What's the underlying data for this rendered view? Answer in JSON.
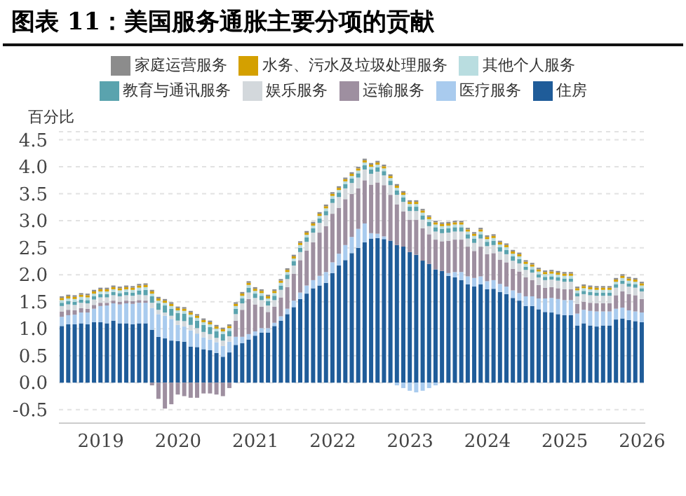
{
  "chart_data": {
    "type": "bar",
    "title": "图表 11：美国服务通胀主要分项的贡献",
    "ylabel": "百分比",
    "stacked": true,
    "legend": "top",
    "grid": "y",
    "categories": [
      null,
      null,
      null,
      null,
      null,
      null,
      "2019",
      null,
      null,
      null,
      null,
      null,
      null,
      null,
      null,
      null,
      null,
      null,
      "2020",
      null,
      null,
      null,
      null,
      null,
      null,
      null,
      null,
      null,
      null,
      null,
      "2021",
      null,
      null,
      null,
      null,
      null,
      null,
      null,
      null,
      null,
      null,
      null,
      "2022",
      null,
      null,
      null,
      null,
      null,
      null,
      null,
      null,
      null,
      null,
      null,
      "2023",
      null,
      null,
      null,
      null,
      null,
      null,
      null,
      null,
      null,
      null,
      null,
      "2024",
      null,
      null,
      null,
      null,
      null,
      null,
      null,
      null,
      null,
      null,
      null,
      "2025",
      null,
      null,
      null,
      null,
      null,
      null,
      null,
      null,
      null,
      null,
      null,
      "2026"
    ],
    "ylim": [
      -0.75,
      4.65
    ],
    "yticks": [
      -0.5,
      {
        "value": 0,
        "label": "0.0"
      },
      0.5,
      {
        "value": 1,
        "label": "1.0"
      },
      1.5,
      {
        "value": 2,
        "label": "2.0"
      },
      2.5,
      {
        "value": 3,
        "label": "3.0"
      },
      3.5,
      {
        "value": 4,
        "label": "4.0"
      },
      4.5
    ],
    "series": [
      {
        "name": "住房",
        "color": "#1f5c99",
        "values": [
          1.05,
          1.08,
          1.08,
          1.1,
          1.08,
          1.12,
          1.12,
          1.1,
          1.15,
          1.1,
          1.1,
          1.08,
          1.1,
          1.1,
          0.98,
          0.85,
          0.82,
          0.78,
          0.77,
          0.76,
          0.67,
          0.66,
          0.62,
          0.6,
          0.55,
          0.48,
          0.56,
          0.7,
          0.73,
          0.8,
          0.87,
          0.93,
          0.93,
          1.05,
          1.15,
          1.27,
          1.4,
          1.55,
          1.65,
          1.75,
          1.8,
          1.85,
          2.03,
          2.17,
          2.27,
          2.4,
          2.5,
          2.6,
          2.67,
          2.68,
          2.66,
          2.63,
          2.55,
          2.52,
          2.42,
          2.37,
          2.26,
          2.2,
          2.1,
          2.07,
          1.98,
          1.95,
          1.9,
          1.82,
          1.78,
          1.82,
          1.73,
          1.74,
          1.68,
          1.64,
          1.57,
          1.52,
          1.42,
          1.42,
          1.36,
          1.31,
          1.3,
          1.27,
          1.25,
          1.25,
          1.06,
          1.1,
          1.06,
          1.04,
          1.06,
          1.06,
          1.17,
          1.19,
          1.16,
          1.14,
          1.12
        ]
      },
      {
        "name": "医疗服务",
        "color": "#a9cbee",
        "values": [
          0.17,
          0.17,
          0.18,
          0.2,
          0.22,
          0.25,
          0.3,
          0.33,
          0.32,
          0.35,
          0.37,
          0.38,
          0.38,
          0.38,
          0.4,
          0.42,
          0.42,
          0.4,
          0.3,
          0.28,
          0.3,
          0.25,
          0.22,
          0.2,
          0.2,
          0.2,
          0.2,
          0.15,
          0.12,
          0.1,
          0.08,
          0.08,
          0.08,
          0.06,
          0.08,
          0.1,
          0.12,
          0.12,
          0.15,
          0.15,
          0.18,
          0.2,
          0.2,
          0.22,
          0.28,
          0.3,
          0.35,
          0.35,
          0.1,
          0.08,
          0.05,
          null,
          -0.05,
          -0.1,
          -0.15,
          -0.18,
          -0.15,
          -0.1,
          -0.05,
          null,
          0.05,
          0.1,
          0.15,
          0.15,
          0.16,
          0.15,
          0.15,
          0.16,
          0.15,
          0.14,
          0.14,
          0.14,
          0.18,
          0.18,
          0.2,
          0.25,
          0.27,
          0.28,
          0.28,
          0.28,
          0.22,
          0.25,
          0.27,
          0.28,
          0.26,
          0.26,
          0.2,
          0.2,
          0.18,
          0.18,
          0.18
        ]
      },
      {
        "name": "运输服务",
        "color": "#9e8fa0",
        "values": [
          0.1,
          0.1,
          0.08,
          0.08,
          0.07,
          0.07,
          0.06,
          0.05,
          0.05,
          0.05,
          0.05,
          0.05,
          0.05,
          0.04,
          -0.05,
          -0.3,
          -0.48,
          -0.4,
          -0.22,
          -0.25,
          -0.28,
          -0.28,
          -0.2,
          -0.2,
          -0.22,
          -0.25,
          -0.1,
          0.3,
          0.5,
          0.65,
          0.5,
          0.4,
          0.3,
          0.3,
          0.35,
          0.4,
          0.5,
          0.6,
          0.65,
          0.7,
          0.8,
          0.85,
          0.9,
          0.85,
          0.85,
          0.8,
          0.75,
          0.8,
          0.9,
          0.95,
          0.95,
          0.85,
          0.75,
          0.65,
          0.6,
          0.65,
          0.6,
          0.55,
          0.55,
          0.55,
          0.6,
          0.6,
          0.6,
          0.55,
          0.5,
          0.55,
          0.5,
          0.5,
          0.45,
          0.45,
          0.4,
          0.4,
          0.35,
          0.3,
          0.25,
          0.2,
          0.2,
          0.2,
          0.2,
          0.2,
          0.18,
          0.15,
          0.15,
          0.15,
          0.15,
          0.15,
          0.25,
          0.3,
          0.3,
          0.3,
          0.25
        ]
      },
      {
        "name": "娱乐服务",
        "color": "#d3d8dc",
        "values": [
          0.1,
          0.1,
          0.1,
          0.1,
          0.1,
          0.1,
          0.1,
          0.1,
          0.1,
          0.1,
          0.1,
          0.1,
          0.1,
          0.1,
          0.1,
          0.08,
          0.06,
          0.06,
          0.08,
          0.1,
          0.1,
          0.1,
          0.1,
          0.1,
          0.08,
          0.1,
          0.1,
          0.12,
          0.12,
          0.12,
          0.12,
          0.12,
          0.12,
          0.12,
          0.14,
          0.15,
          0.15,
          0.15,
          0.16,
          0.18,
          0.18,
          0.2,
          0.2,
          0.2,
          0.2,
          0.2,
          0.2,
          0.2,
          0.2,
          0.2,
          0.18,
          0.18,
          0.18,
          0.18,
          0.16,
          0.16,
          0.16,
          0.15,
          0.15,
          0.15,
          0.15,
          0.15,
          0.15,
          0.15,
          0.15,
          0.15,
          0.15,
          0.15,
          0.15,
          0.15,
          0.15,
          0.15,
          0.14,
          0.14,
          0.14,
          0.14,
          0.14,
          0.14,
          0.14,
          0.14,
          0.14,
          0.14,
          0.14,
          0.14,
          0.14,
          0.14,
          0.14,
          0.14,
          0.14,
          0.14,
          0.14
        ]
      },
      {
        "name": "教育与通讯服务",
        "color": "#5aa3ae",
        "values": [
          0.06,
          0.06,
          0.06,
          0.06,
          0.06,
          0.06,
          0.06,
          0.06,
          0.06,
          0.06,
          0.06,
          0.06,
          0.08,
          0.1,
          0.12,
          0.12,
          0.13,
          0.13,
          0.14,
          0.14,
          0.14,
          0.14,
          0.13,
          0.13,
          0.12,
          0.12,
          0.1,
          0.1,
          0.09,
          0.09,
          0.08,
          0.08,
          0.08,
          0.08,
          0.08,
          0.08,
          0.08,
          0.08,
          0.08,
          0.08,
          0.08,
          0.08,
          0.08,
          0.08,
          0.08,
          0.08,
          0.08,
          0.08,
          0.08,
          0.08,
          0.08,
          0.08,
          0.08,
          0.08,
          0.08,
          0.08,
          0.08,
          0.08,
          0.08,
          0.08,
          0.08,
          0.08,
          0.08,
          0.08,
          0.08,
          0.08,
          0.08,
          0.08,
          0.08,
          0.08,
          0.08,
          0.08,
          0.06,
          0.06,
          0.06,
          0.06,
          0.06,
          0.06,
          0.06,
          0.06,
          0.06,
          0.06,
          0.06,
          0.06,
          0.06,
          0.06,
          0.06,
          0.06,
          0.06,
          0.06,
          0.06
        ]
      },
      {
        "name": "其他个人服务",
        "color": "#b9dde0",
        "values": [
          0.05,
          0.05,
          0.05,
          0.05,
          0.05,
          0.05,
          0.05,
          0.05,
          0.05,
          0.05,
          0.05,
          0.05,
          0.05,
          0.05,
          0.05,
          0.05,
          0.05,
          0.05,
          0.05,
          0.05,
          0.05,
          0.05,
          0.05,
          0.05,
          0.05,
          0.05,
          0.05,
          0.05,
          0.05,
          0.05,
          0.05,
          0.05,
          0.05,
          0.05,
          0.05,
          0.05,
          0.05,
          0.05,
          0.05,
          0.05,
          0.05,
          0.05,
          0.05,
          0.05,
          0.05,
          0.05,
          0.05,
          0.05,
          0.05,
          0.05,
          0.05,
          0.05,
          0.05,
          0.05,
          0.05,
          0.05,
          0.05,
          0.05,
          0.05,
          0.05,
          0.05,
          0.05,
          0.05,
          0.05,
          0.05,
          0.05,
          0.05,
          0.05,
          0.05,
          0.05,
          0.05,
          0.05,
          0.05,
          0.05,
          0.05,
          0.05,
          0.05,
          0.05,
          0.05,
          0.05,
          0.05,
          0.05,
          0.05,
          0.05,
          0.05,
          0.05,
          0.05,
          0.05,
          0.05,
          0.05,
          0.05
        ]
      },
      {
        "name": "水务、污水及垃圾处理服务",
        "color": "#d4a000",
        "values": [
          0.04,
          0.04,
          0.04,
          0.04,
          0.04,
          0.04,
          0.04,
          0.04,
          0.04,
          0.04,
          0.04,
          0.04,
          0.04,
          0.04,
          0.04,
          0.04,
          0.04,
          0.04,
          0.04,
          0.04,
          0.04,
          0.04,
          0.04,
          0.04,
          0.04,
          0.04,
          0.04,
          0.04,
          0.04,
          0.04,
          0.04,
          0.04,
          0.04,
          0.04,
          0.04,
          0.04,
          0.04,
          0.04,
          0.04,
          0.04,
          0.04,
          0.04,
          0.04,
          0.04,
          0.04,
          0.04,
          0.04,
          0.04,
          0.04,
          0.04,
          0.04,
          0.04,
          0.04,
          0.04,
          0.04,
          0.04,
          0.04,
          0.04,
          0.04,
          0.04,
          0.04,
          0.04,
          0.04,
          0.04,
          0.04,
          0.04,
          0.04,
          0.04,
          0.04,
          0.04,
          0.04,
          0.04,
          0.04,
          0.04,
          0.04,
          0.04,
          0.04,
          0.04,
          0.04,
          0.04,
          0.04,
          0.04,
          0.04,
          0.04,
          0.04,
          0.04,
          0.04,
          0.04,
          0.04,
          0.04,
          0.04
        ]
      },
      {
        "name": "家庭运营服务",
        "color": "#8c8c8c",
        "values": [
          0.03,
          0.03,
          0.03,
          0.03,
          0.03,
          0.03,
          0.03,
          0.03,
          0.03,
          0.03,
          0.03,
          0.03,
          0.03,
          0.03,
          0.03,
          0.03,
          0.03,
          0.03,
          0.03,
          0.03,
          0.03,
          0.03,
          0.03,
          0.03,
          0.03,
          0.03,
          0.03,
          0.03,
          0.03,
          0.03,
          0.03,
          0.03,
          0.03,
          0.03,
          0.03,
          0.03,
          0.03,
          0.03,
          0.03,
          0.03,
          0.03,
          0.03,
          0.03,
          0.03,
          0.03,
          0.03,
          0.03,
          0.03,
          0.03,
          0.03,
          0.03,
          0.03,
          0.03,
          0.03,
          0.03,
          0.03,
          0.03,
          0.03,
          0.03,
          0.03,
          0.03,
          0.03,
          0.03,
          0.03,
          0.03,
          0.03,
          0.03,
          0.03,
          0.03,
          0.03,
          0.03,
          0.03,
          0.03,
          0.03,
          0.03,
          0.03,
          0.03,
          0.03,
          0.03,
          0.03,
          0.03,
          0.03,
          0.03,
          0.03,
          0.03,
          0.03,
          0.03,
          0.03,
          0.03,
          0.03,
          0.03
        ]
      }
    ]
  }
}
